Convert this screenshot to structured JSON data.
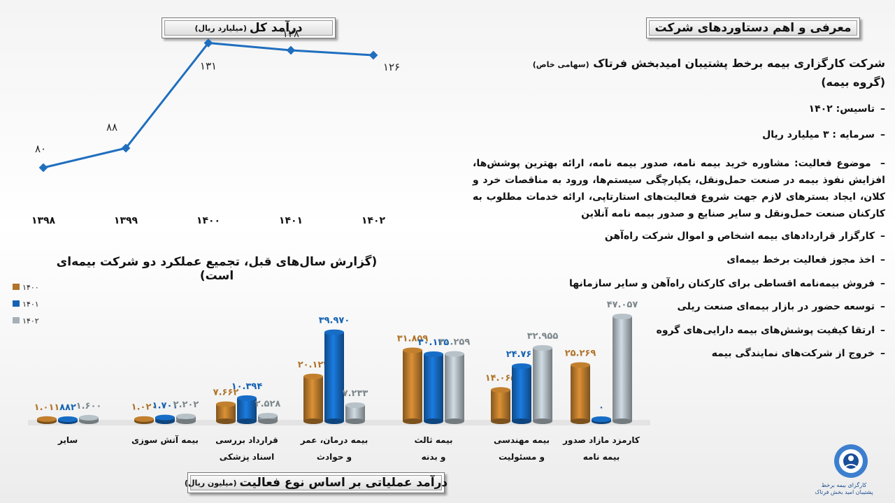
{
  "titles": {
    "intro": "معرفی و اهم دستاوردهای شرکت",
    "total_main": "درآمد کل",
    "total_unit": "(میلیارد ریال)",
    "ops_main": "درآمد عملیاتی بر اساس نوع فعالیت",
    "ops_unit": "(میلیون ریال)",
    "report": "(گزارش سال‌های قبل، تجمیع عملکرد دو شرکت بیمه‌ای است)"
  },
  "company": {
    "name": "شرکت کارگزاری بیمه برخط پشتیبان امیدبخش فرتاک",
    "type": "(سهامی خاص)",
    "group": "(گروه بیمه)"
  },
  "bullets": {
    "founded": "تاسیس: ۱۴۰۲",
    "capital": "سرمایه : ۳ میلیارد ریال",
    "activity": "موضوع فعالیت: مشاوره خرید بیمه نامه، صدور بیمه نامه، ارائه بهترین پوشش‌ها، افزایش نفوذ بیمه در صنعت حمل‌ونقل، یکپارچگی سیستم‌ها، ورود به مناقصات خرد و کلان، ایجاد بسترهای لازم جهت شروع فعالیت‌های استارتاپی، ارائه خدمات مطلوب به کارکنان صنعت حمل‌ونقل و سایر صنایع و صدور بیمه نامه آنلاین",
    "items": [
      "کارگزار قراردادهای بیمه اشخاص و اموال شرکت راه‌آهن",
      "اخذ مجوز فعالیت برخط بیمه‌ای",
      "فروش بیمه‌نامه اقساطی برای کارکنان راه‌آهن و سایر سازمانها",
      "توسعه حضور در بازار بیمه‌ای صنعت ریلی",
      "ارتقا کیفیت پوشش‌های بیمه دارایی‌های گروه",
      "خروج از شرکت‌های نمایندگی بیمه"
    ]
  },
  "logo": {
    "line1": "کارگزای بیمه برخط",
    "line2": "پشتیبان امید بخش فرتاک"
  },
  "colors": {
    "line": "#1f6fbf",
    "s1400": "#b0742a",
    "s1401": "#1563b4",
    "s1402": "#a6b0b6"
  },
  "chart_data": [
    {
      "type": "line",
      "title": "درآمد کل (میلیارد ریال)",
      "categories": [
        "۱۳۹۸",
        "۱۳۹۹",
        "۱۴۰۰",
        "۱۴۰۱",
        "۱۴۰۲"
      ],
      "values": [
        80,
        88,
        131,
        128,
        126
      ],
      "labels": [
        "۸۰",
        "۸۸",
        "۱۳۱",
        "۱۲۸",
        "۱۲۶"
      ],
      "ylim": [
        60,
        140
      ]
    },
    {
      "type": "bar",
      "title": "درآمد عملیاتی بر اساس نوع فعالیت (میلیون ریال)",
      "categories": [
        "سایر",
        "بیمه آتش سوزی",
        "قرارداد بررسی اسناد پزشکی",
        "بیمه درمان، عمر و حوادث",
        "بیمه ثالث و بدنه",
        "بیمه مهندسی و مسئولیت",
        "کارمزد مازاد صدور بیمه نامه"
      ],
      "series": [
        {
          "name": "۱۴۰۰",
          "values": [
            1011,
            1020,
            7662,
            20123,
            31859,
            14065,
            25269
          ],
          "labels": [
            "۱.۰۱۱",
            "۱.۰۲۰",
            "۷.۶۶۲",
            "۲۰.۱۲۳",
            "۳۱.۸۵۹",
            "۱۴.۰۶۵",
            "۲۵.۲۶۹"
          ]
        },
        {
          "name": "۱۴۰۱",
          "values": [
            882,
            1701,
            10394,
            39970,
            30125,
            24760,
            0
          ],
          "labels": [
            "۸۸۲",
            "۱.۷۰۱",
            "۱۰.۳۹۴",
            "۳۹.۹۷۰",
            "۳۰.۱۲۵",
            "۲۴.۷۶۰",
            "۰"
          ]
        },
        {
          "name": "۱۴۰۲",
          "values": [
            1600,
            2202,
            2528,
            7233,
            30259,
            32955,
            47057
          ],
          "labels": [
            "۱.۶۰۰",
            "۲.۲۰۲",
            "۲.۵۲۸",
            "۷.۲۳۳",
            "۳۰.۲۵۹",
            "۳۲.۹۵۵",
            "۴۷.۰۵۷"
          ]
        }
      ],
      "legend_position": "top-left"
    }
  ]
}
